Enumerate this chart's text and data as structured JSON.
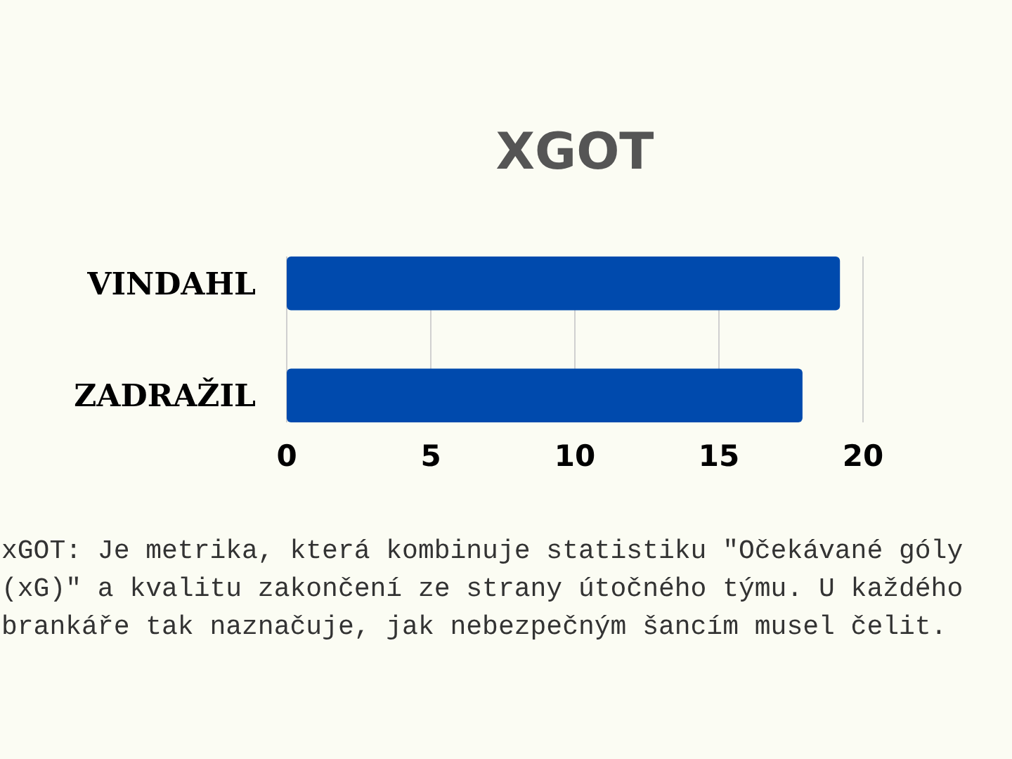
{
  "chart_data": {
    "type": "bar",
    "orientation": "horizontal",
    "title": "XGOT",
    "categories": [
      "VINDAHL",
      "ZADRAŽIL"
    ],
    "values": [
      19.2,
      17.9
    ],
    "color": "#004aad",
    "xlim": [
      0,
      20
    ],
    "xticks": [
      0,
      5,
      10,
      15,
      20
    ],
    "grid": "x",
    "annotations": [
      "xGOT: Je metrika, která kombinuje statistiku \"Očekávané góly (xG)\" a kvalitu zakončení ze strany útočného týmu. U každého brankáře tak naznačuje, jak nebezpečným šancím musel čelit."
    ]
  }
}
